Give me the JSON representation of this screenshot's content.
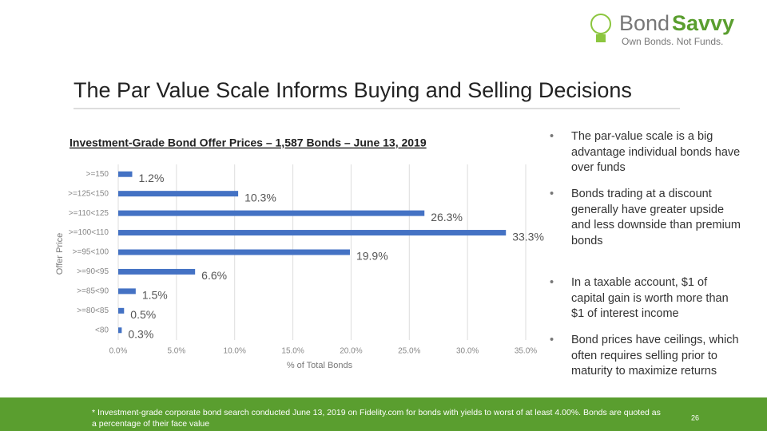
{
  "title": "The Par Value Scale Informs Buying and Selling Decisions",
  "logo": {
    "name_first": "Bond",
    "name_second": "Savvy",
    "tagline": "Own Bonds. Not Funds."
  },
  "bullets": [
    "The par-value scale is a big advantage individual bonds have over funds",
    "Bonds trading at a discount generally have greater upside and less downside than premium bonds",
    "In a taxable account, $1 of capital gain is worth more than $1 of interest income",
    "Bond prices have ceilings, which often requires selling prior to maturity to maximize returns"
  ],
  "footnote": "* Investment-grade corporate bond search conducted June 13, 2019 on Fidelity.com for bonds with yields to worst of at least 4.00%. Bonds are quoted as a percentage of their face value",
  "page_number": "26",
  "chart_data": {
    "type": "hbar",
    "title": "Investment-Grade Bond Offer Prices – 1,587 Bonds – June 13, 2019",
    "x_label": "% of Total Bonds",
    "y_label": "Offer Price",
    "categories": [
      ">=150",
      ">=125<150",
      ">=110<125",
      ">=100<110",
      ">=95<100",
      ">=90<95",
      ">=85<90",
      ">=80<85",
      "<80"
    ],
    "values": [
      1.2,
      10.3,
      26.3,
      33.3,
      19.9,
      6.6,
      1.5,
      0.5,
      0.3
    ],
    "value_labels": [
      "1.2%",
      "10.3%",
      "26.3%",
      "33.3%",
      "19.9%",
      "6.6%",
      "1.5%",
      "0.5%",
      "0.3%"
    ],
    "color": "#4472c4",
    "xlim": [
      0,
      35
    ],
    "xticks": [
      {
        "value": 0,
        "label": "0.0%"
      },
      {
        "value": 5,
        "label": "5.0%"
      },
      {
        "value": 10,
        "label": "10.0%"
      },
      {
        "value": 15,
        "label": "15.0%"
      },
      {
        "value": 20,
        "label": "20.0%"
      },
      {
        "value": 25,
        "label": "25.0%"
      },
      {
        "value": 30,
        "label": "30.0%"
      },
      {
        "value": 35,
        "label": "35.0%"
      }
    ],
    "grid": true
  }
}
